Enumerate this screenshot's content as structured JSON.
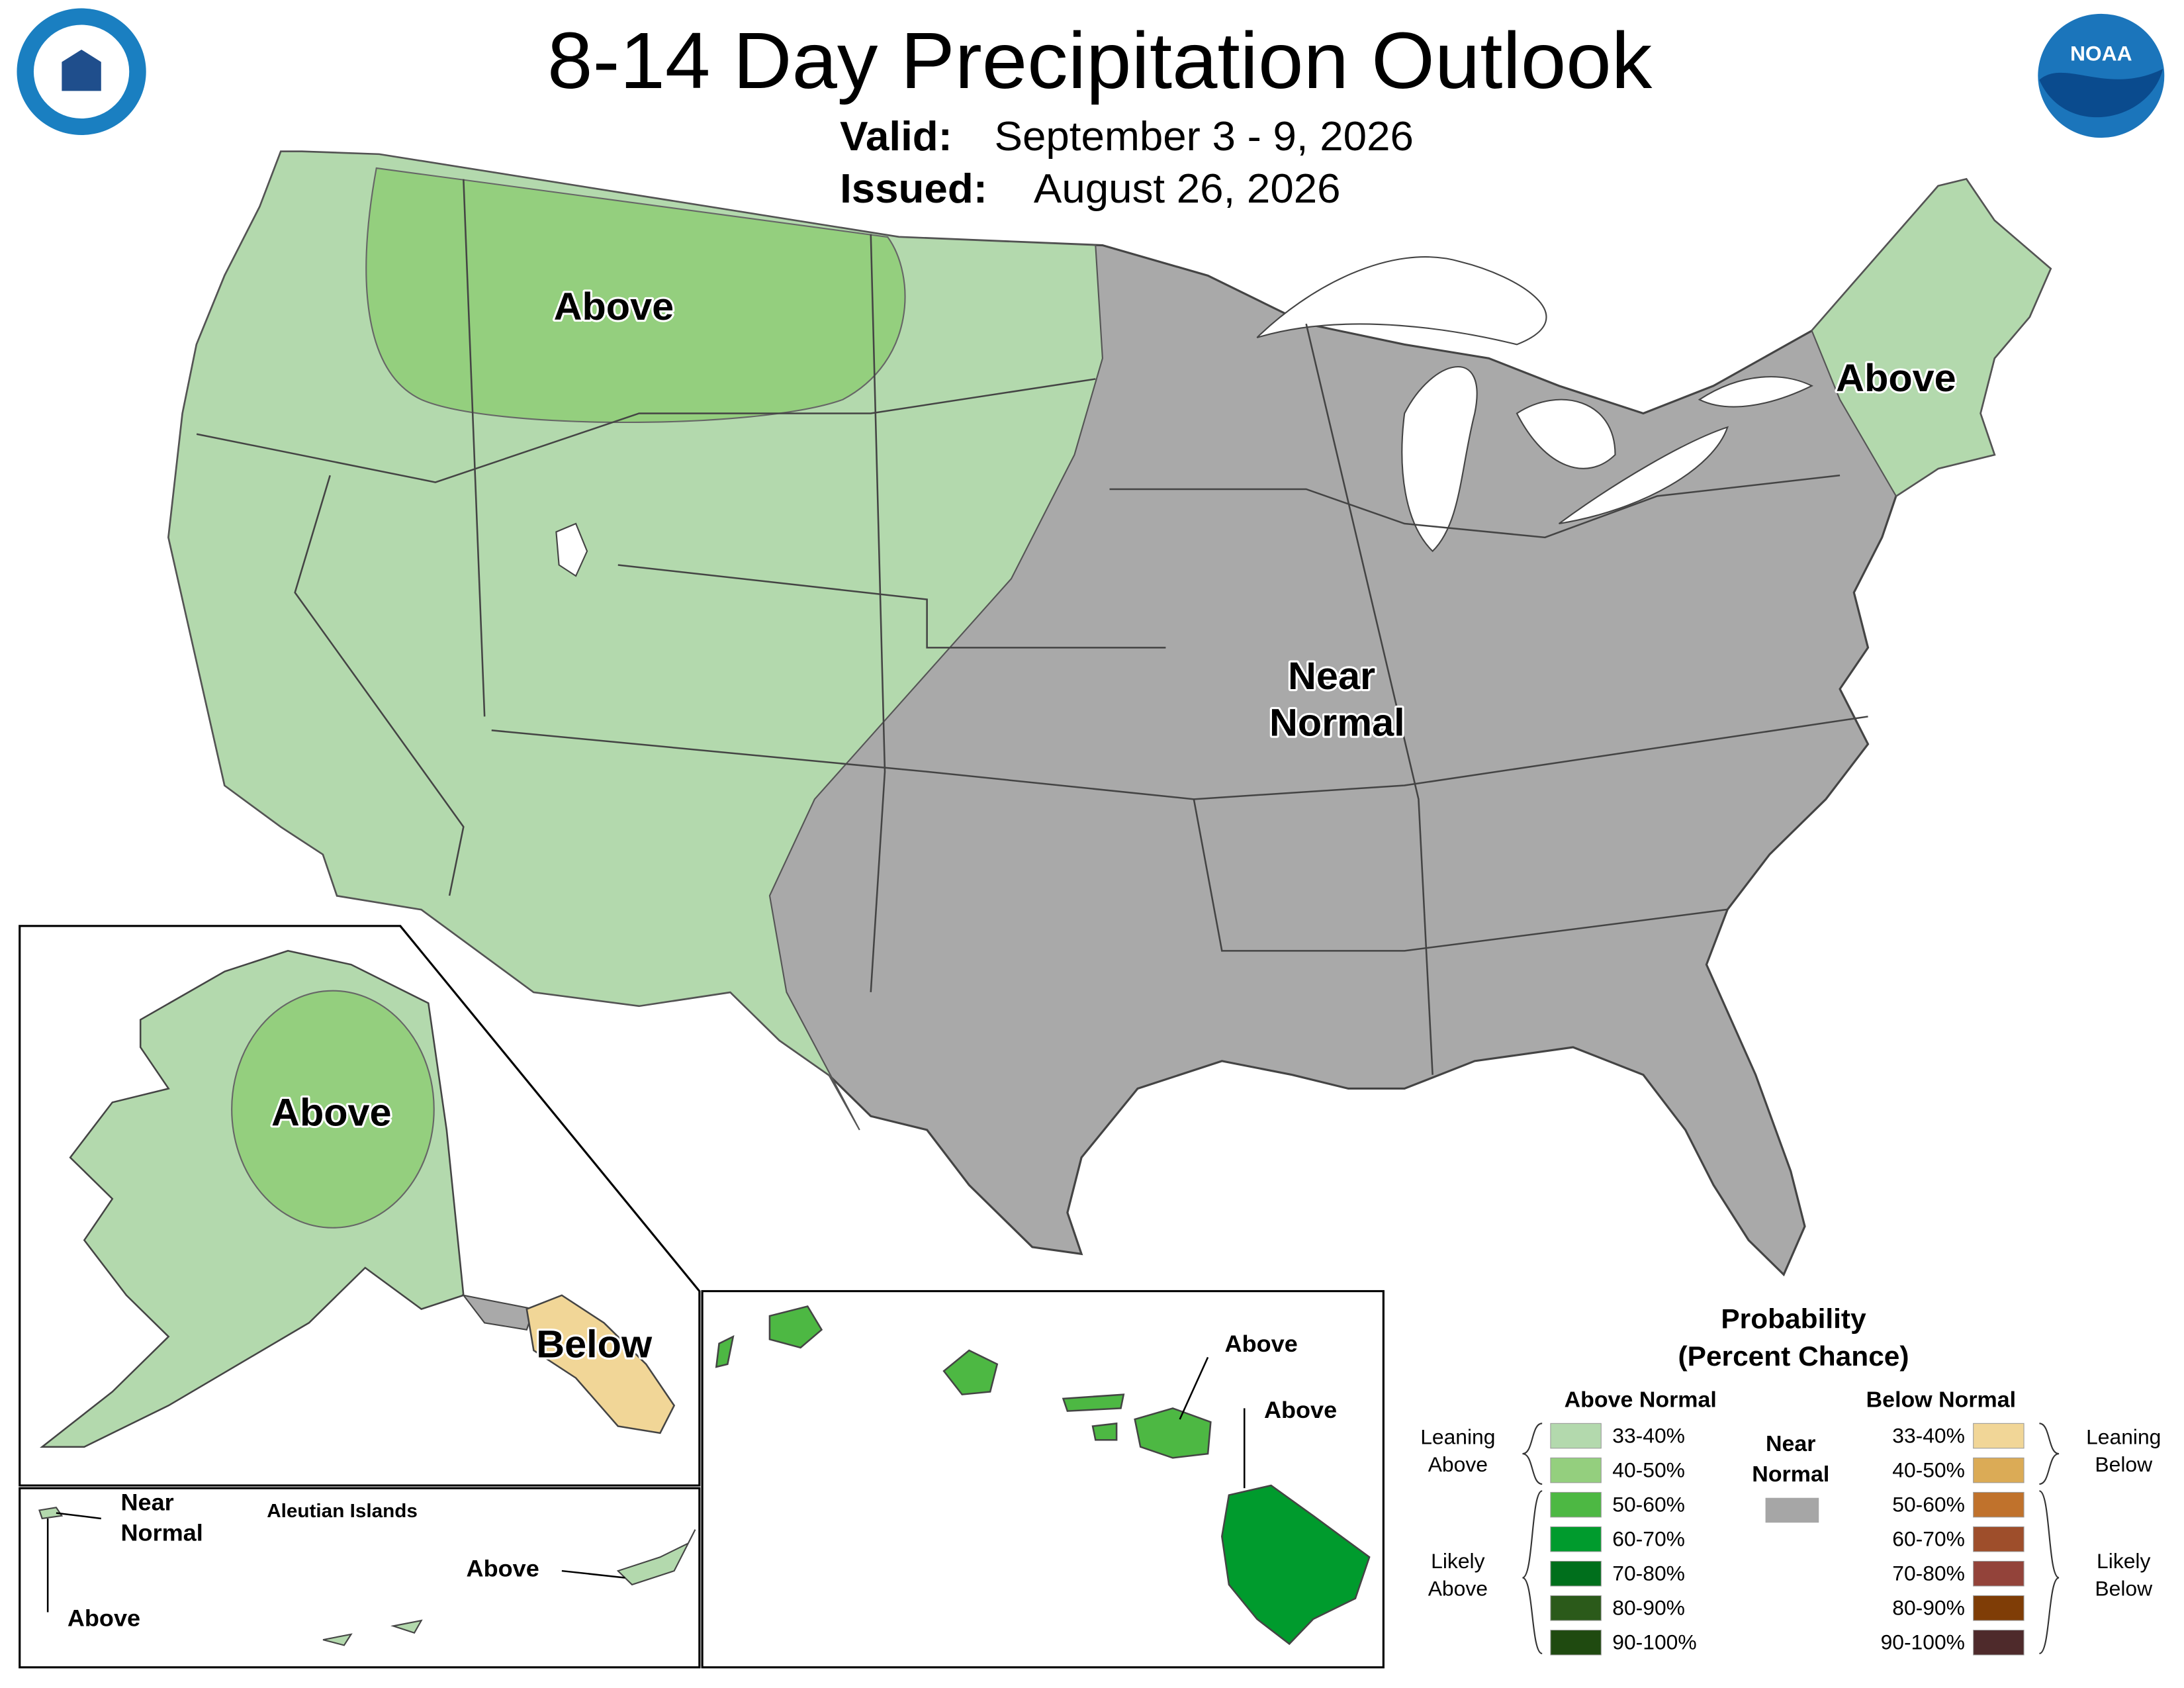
{
  "header": {
    "title": "8-14 Day Precipitation Outlook",
    "valid_label": "Valid:",
    "valid": "September 3 - 9, 2026",
    "issued_label": "Issued:",
    "issued": "August 26, 2026"
  },
  "logos": {
    "noaa": "NOAA"
  },
  "map_labels": {
    "conus_northwest": "Above",
    "conus_northeast": "Above",
    "conus_central": [
      "Near",
      "Normal"
    ],
    "alaska_interior": "Above",
    "alaska_southeast": "Below",
    "aleutians_west": [
      "Near",
      "Normal"
    ],
    "aleutians_west_lower": "Above",
    "aleutians_title": "Aleutian Islands",
    "aleutians_east": "Above",
    "hawaii_maui": "Above",
    "hawaii_big_island": "Above"
  },
  "legend": {
    "title": [
      "Probability",
      "(Percent Chance)"
    ],
    "above_header": "Above Normal",
    "below_header": "Below Normal",
    "near": [
      "Near",
      "Normal"
    ],
    "near_color": "#a6a6a6",
    "leaning_above": [
      "Leaning",
      "Above"
    ],
    "likely_above": [
      "Likely",
      "Above"
    ],
    "leaning_below": [
      "Leaning",
      "Below"
    ],
    "likely_below": [
      "Likely",
      "Below"
    ],
    "above": [
      {
        "label": "33-40%",
        "color": "#b3d9ad"
      },
      {
        "label": "40-50%",
        "color": "#94cf7e"
      },
      {
        "label": "50-60%",
        "color": "#4db843"
      },
      {
        "label": "60-70%",
        "color": "#009b2d"
      },
      {
        "label": "70-80%",
        "color": "#006f1c"
      },
      {
        "label": "80-90%",
        "color": "#2b5a1a"
      },
      {
        "label": "90-100%",
        "color": "#1f4a10"
      }
    ],
    "below": [
      {
        "label": "33-40%",
        "color": "#f1d697"
      },
      {
        "label": "40-50%",
        "color": "#dbab56"
      },
      {
        "label": "50-60%",
        "color": "#c0722c"
      },
      {
        "label": "60-70%",
        "color": "#9e4e2b"
      },
      {
        "label": "70-80%",
        "color": "#93433a"
      },
      {
        "label": "80-90%",
        "color": "#7f3d06"
      },
      {
        "label": "90-100%",
        "color": "#4e2a2b"
      }
    ]
  }
}
